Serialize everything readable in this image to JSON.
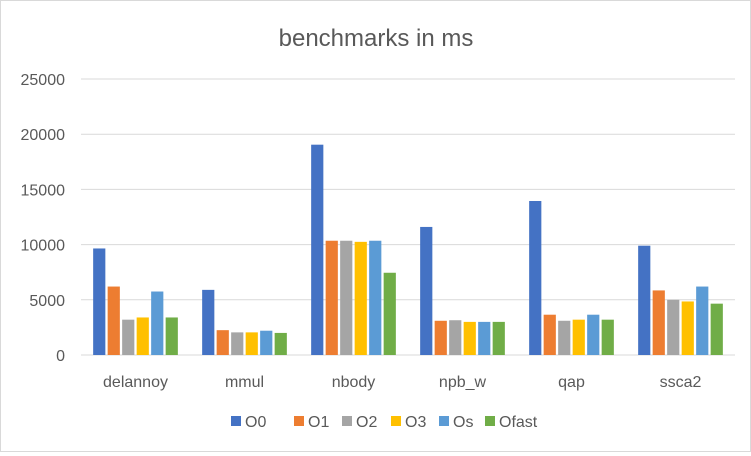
{
  "chart_data": {
    "type": "bar",
    "title": "benchmarks in ms",
    "xlabel": "",
    "ylabel": "",
    "ylim": [
      0,
      25000
    ],
    "yticks": [
      0,
      5000,
      10000,
      15000,
      20000,
      25000
    ],
    "grid": true,
    "legend_position": "bottom",
    "categories": [
      "delannoy",
      "mmul",
      "nbody",
      "npb_w",
      "qap",
      "ssca2"
    ],
    "series": [
      {
        "name": "O0",
        "color": "#4472C4",
        "values": [
          9650,
          5900,
          19050,
          11600,
          13950,
          9900
        ]
      },
      {
        "name": "O1",
        "color": "#ED7D31",
        "values": [
          6200,
          2250,
          10350,
          3100,
          3650,
          5850
        ]
      },
      {
        "name": "O2",
        "color": "#A5A5A5",
        "values": [
          3200,
          2050,
          10350,
          3150,
          3100,
          5000
        ]
      },
      {
        "name": "O3",
        "color": "#FFC000",
        "values": [
          3400,
          2050,
          10250,
          3000,
          3200,
          4850
        ]
      },
      {
        "name": "Os",
        "color": "#5B9BD5",
        "values": [
          5750,
          2200,
          10350,
          3000,
          3650,
          6200
        ]
      },
      {
        "name": "Ofast",
        "color": "#70AD47",
        "values": [
          3400,
          2000,
          7450,
          3000,
          3200,
          4650
        ]
      }
    ]
  }
}
